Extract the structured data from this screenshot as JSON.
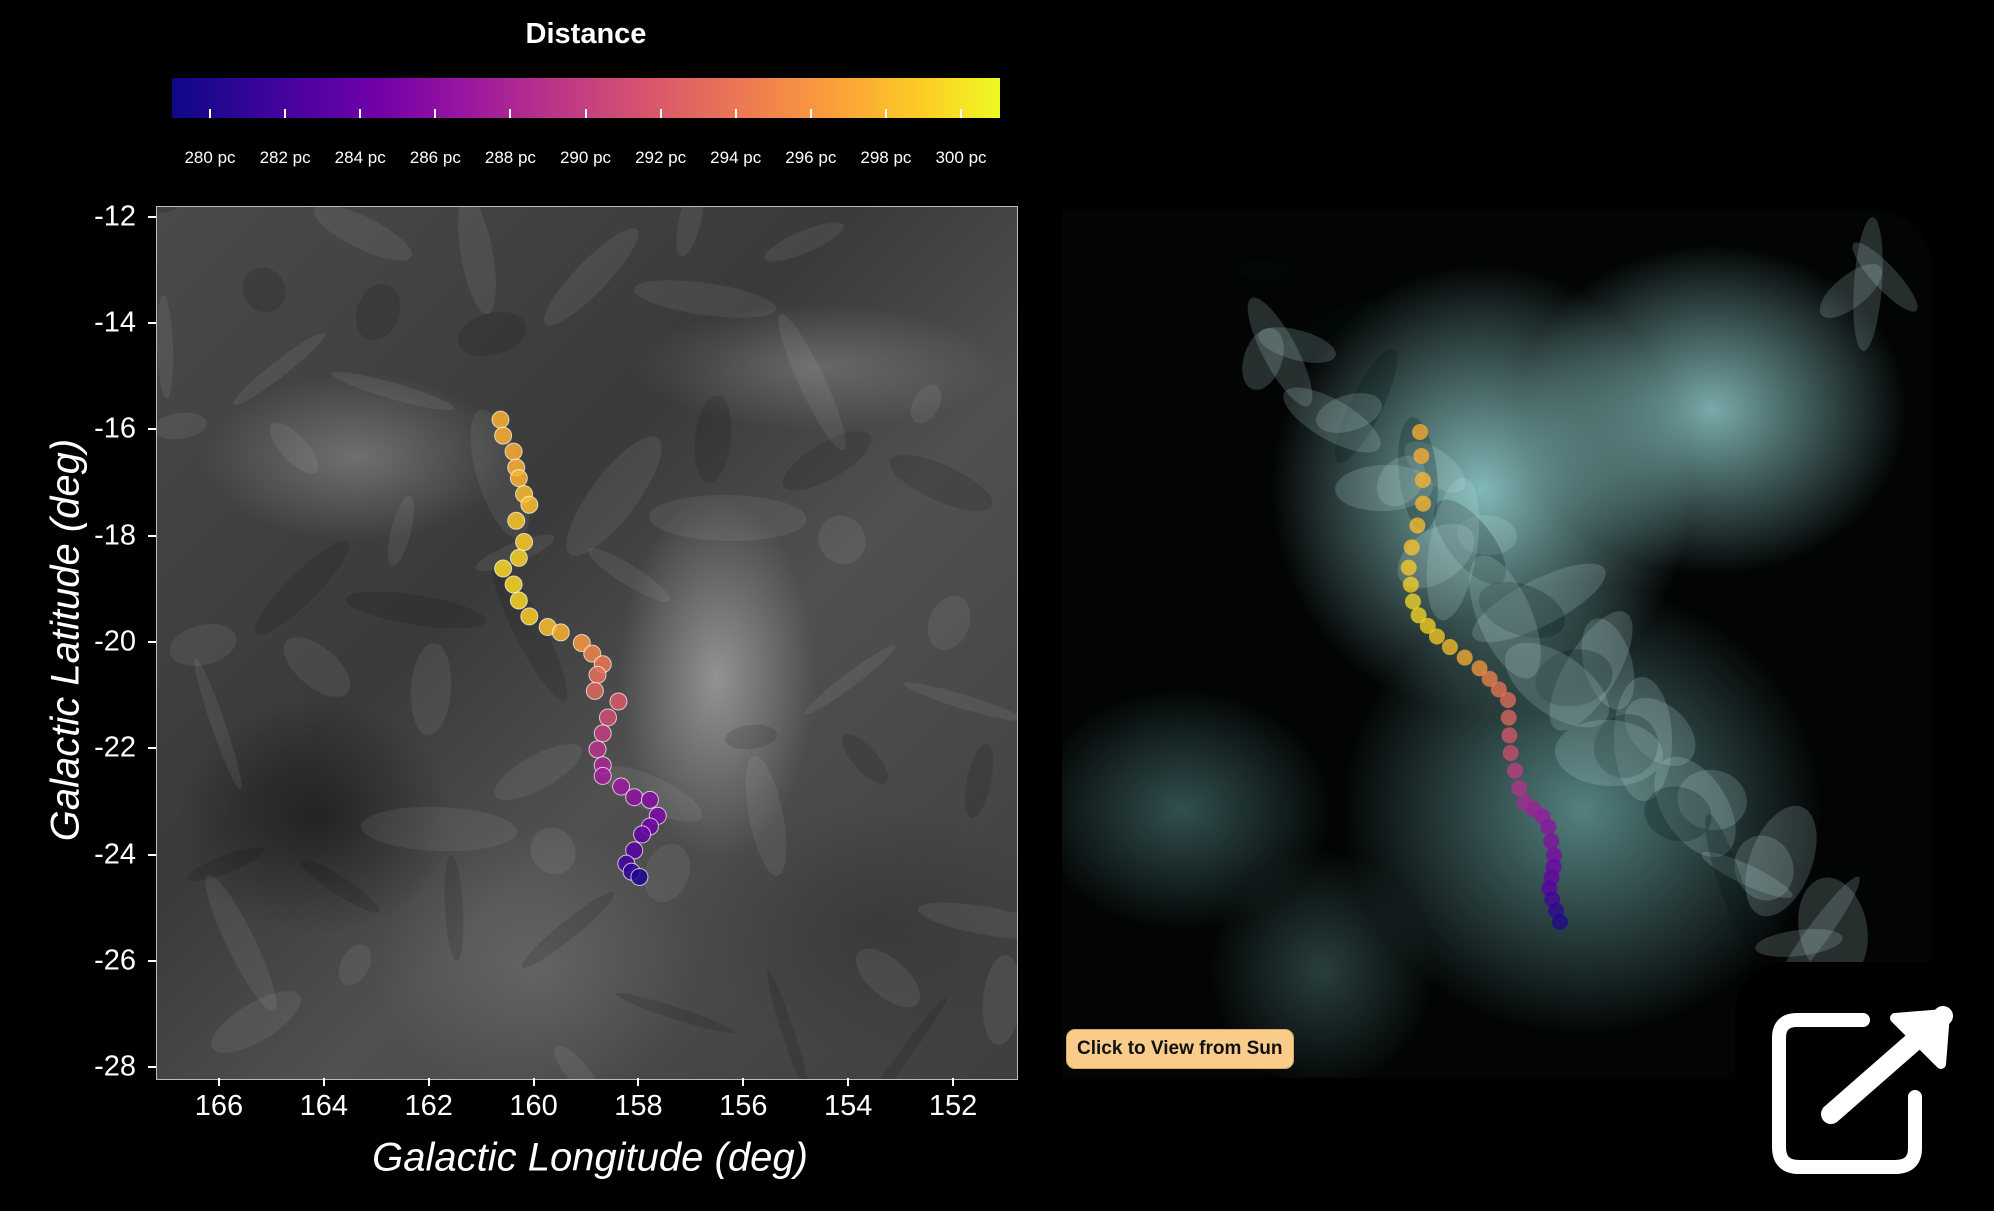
{
  "colorbar": {
    "title": "Distance",
    "tick_labels": [
      "280 pc",
      "282 pc",
      "284 pc",
      "286 pc",
      "288 pc",
      "290 pc",
      "292 pc",
      "294 pc",
      "296 pc",
      "298 pc",
      "300 pc"
    ],
    "range": [
      279.3,
      301.3
    ],
    "colormap": "plasma"
  },
  "view_button_label": "Click to View from Sun",
  "expand_icon": "external-link-icon",
  "chart_data": [
    {
      "type": "scatter",
      "title": "",
      "xlabel": "Galactic Longitude (deg)",
      "ylabel": "Galactic Latitude (deg)",
      "xlim": [
        167.2,
        150.8
      ],
      "ylim": [
        -28.2,
        -11.8
      ],
      "x_ticks": [
        "166",
        "164",
        "162",
        "160",
        "158",
        "156",
        "154",
        "152"
      ],
      "y_ticks": [
        "-12",
        "-14",
        "-16",
        "-18",
        "-20",
        "-22",
        "-24",
        "-26",
        "-28"
      ],
      "x_tick_values": [
        166,
        164,
        162,
        160,
        158,
        156,
        154,
        152
      ],
      "y_tick_values": [
        -12,
        -14,
        -16,
        -18,
        -20,
        -22,
        -24,
        -26,
        -28
      ],
      "background": "grayscale dust map",
      "points": [
        {
          "l": 160.65,
          "b": -15.8,
          "d": 297.5
        },
        {
          "l": 160.6,
          "b": -16.1,
          "d": 297.3
        },
        {
          "l": 160.4,
          "b": -16.4,
          "d": 297.2
        },
        {
          "l": 160.35,
          "b": -16.7,
          "d": 297.4
        },
        {
          "l": 160.3,
          "b": -16.9,
          "d": 297.6
        },
        {
          "l": 160.2,
          "b": -17.2,
          "d": 298.0
        },
        {
          "l": 160.1,
          "b": -17.4,
          "d": 298.3
        },
        {
          "l": 160.35,
          "b": -17.7,
          "d": 298.6
        },
        {
          "l": 160.2,
          "b": -18.1,
          "d": 299.0
        },
        {
          "l": 160.3,
          "b": -18.4,
          "d": 299.4
        },
        {
          "l": 160.6,
          "b": -18.6,
          "d": 299.7
        },
        {
          "l": 160.4,
          "b": -18.9,
          "d": 299.8
        },
        {
          "l": 160.3,
          "b": -19.2,
          "d": 299.5
        },
        {
          "l": 160.1,
          "b": -19.5,
          "d": 299.0
        },
        {
          "l": 159.75,
          "b": -19.7,
          "d": 298.3
        },
        {
          "l": 159.5,
          "b": -19.8,
          "d": 297.5
        },
        {
          "l": 159.1,
          "b": -20.0,
          "d": 296.0
        },
        {
          "l": 158.9,
          "b": -20.2,
          "d": 294.8
        },
        {
          "l": 158.7,
          "b": -20.4,
          "d": 293.8
        },
        {
          "l": 158.8,
          "b": -20.6,
          "d": 293.2
        },
        {
          "l": 158.85,
          "b": -20.9,
          "d": 292.7
        },
        {
          "l": 158.4,
          "b": -21.1,
          "d": 291.6
        },
        {
          "l": 158.6,
          "b": -21.4,
          "d": 290.8
        },
        {
          "l": 158.7,
          "b": -21.7,
          "d": 289.6
        },
        {
          "l": 158.8,
          "b": -22.0,
          "d": 288.6
        },
        {
          "l": 158.7,
          "b": -22.3,
          "d": 287.8
        },
        {
          "l": 158.7,
          "b": -22.5,
          "d": 287.1
        },
        {
          "l": 158.35,
          "b": -22.7,
          "d": 286.5
        },
        {
          "l": 158.1,
          "b": -22.9,
          "d": 285.9
        },
        {
          "l": 157.8,
          "b": -22.95,
          "d": 285.3
        },
        {
          "l": 157.65,
          "b": -23.25,
          "d": 284.8
        },
        {
          "l": 157.8,
          "b": -23.45,
          "d": 284.2
        },
        {
          "l": 157.95,
          "b": -23.6,
          "d": 283.5
        },
        {
          "l": 158.1,
          "b": -23.9,
          "d": 282.7
        },
        {
          "l": 158.25,
          "b": -24.15,
          "d": 281.6
        },
        {
          "l": 158.15,
          "b": -24.3,
          "d": 280.8
        },
        {
          "l": 158.0,
          "b": -24.4,
          "d": 280.0
        }
      ]
    },
    {
      "type": "scatter",
      "title": "",
      "note": "3D view of dust cloud with the same filament",
      "points_d": [
        297.5,
        297.4,
        297.6,
        298.0,
        298.3,
        298.6,
        299.0,
        299.4,
        299.7,
        299.8,
        299.5,
        299.0,
        298.3,
        297.5,
        296.0,
        294.8,
        293.8,
        293.2,
        292.7,
        291.6,
        290.8,
        289.6,
        288.6,
        287.8,
        287.1,
        286.5,
        285.9,
        285.3,
        284.8,
        284.2,
        283.5,
        282.7,
        281.6,
        280.8,
        280.0
      ]
    }
  ]
}
